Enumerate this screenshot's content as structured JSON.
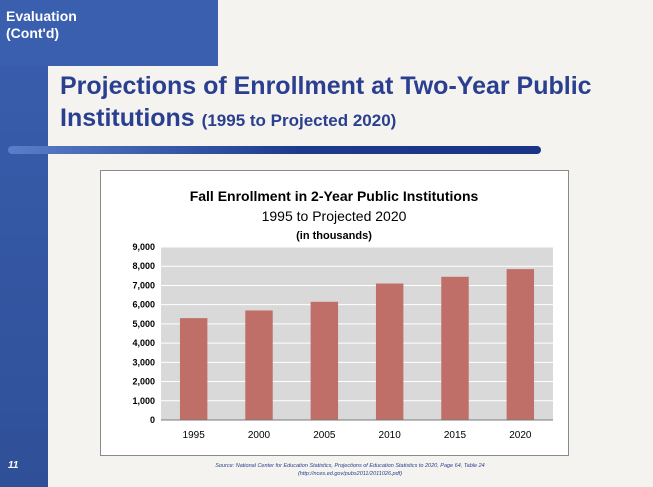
{
  "slide": {
    "section_label": "Evaluation\n(Cont'd)",
    "title": "Projections of Enrollment at Two-Year Public Institutions",
    "title_range": "(1995 to Projected 2020)",
    "page_number": "11",
    "source_line1": "Source: National Center for Education Statistics, Projections of Education Statistics to 2020, Page 64, Table 24",
    "source_line2": "(http://nces.ed.gov/pubs2011/2011026.pdf)"
  },
  "colors": {
    "sidebar": "#3a5fae",
    "title": "#2a3f8f",
    "bar": "#bf6f67",
    "plot_area": "#d9d9d9"
  },
  "chart_data": {
    "type": "bar",
    "title": "Fall Enrollment in 2-Year Public Institutions",
    "subtitle": "1995 to Projected 2020",
    "unit_note": "(in thousands)",
    "categories": [
      "1995",
      "2000",
      "2005",
      "2010",
      "2015",
      "2020"
    ],
    "values": [
      5300,
      5700,
      6150,
      7100,
      7450,
      7850
    ],
    "ylim": [
      0,
      9000
    ],
    "yticks": [
      0,
      1000,
      2000,
      3000,
      4000,
      5000,
      6000,
      7000,
      8000,
      9000
    ],
    "ytick_labels": [
      "0",
      "1,000",
      "2,000",
      "3,000",
      "4,000",
      "5,000",
      "6,000",
      "7,000",
      "8,000",
      "9,000"
    ],
    "grid": true,
    "legend": "none"
  }
}
